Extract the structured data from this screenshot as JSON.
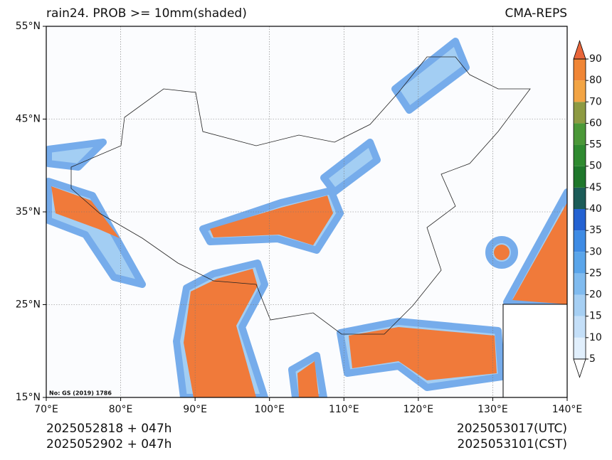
{
  "header": {
    "title": "rain24. PROB >= 10mm(shaded)",
    "source": "CMA-REPS"
  },
  "map": {
    "xlim": [
      70,
      140
    ],
    "ylim": [
      15,
      55
    ],
    "xticks": [
      {
        "value": 70,
        "label": "70°E"
      },
      {
        "value": 80,
        "label": "80°E"
      },
      {
        "value": 90,
        "label": "90°E"
      },
      {
        "value": 100,
        "label": "100°E"
      },
      {
        "value": 110,
        "label": "110°E"
      },
      {
        "value": 120,
        "label": "120°E"
      },
      {
        "value": 130,
        "label": "130°E"
      },
      {
        "value": 140,
        "label": "140°E"
      }
    ],
    "yticks": [
      {
        "value": 15,
        "label": "15°N"
      },
      {
        "value": 25,
        "label": "25°N"
      },
      {
        "value": 35,
        "label": "35°N"
      },
      {
        "value": 45,
        "label": "45°N"
      },
      {
        "value": 55,
        "label": "55°N"
      }
    ],
    "grid": true,
    "note": "No: GS (2019) 1786"
  },
  "colorbar": {
    "levels": [
      5,
      10,
      15,
      20,
      25,
      30,
      35,
      40,
      45,
      50,
      55,
      60,
      70,
      80,
      90
    ],
    "colors": [
      "#e1effc",
      "#c4dff8",
      "#a6cff3",
      "#80bbef",
      "#5aa5ea",
      "#3e8be4",
      "#2462d2",
      "#1c5c58",
      "#1f772b",
      "#2f8a30",
      "#4b9838",
      "#8d9a42",
      "#f2a444",
      "#f08636"
    ],
    "under_color": "#ffffff",
    "over_color": "#e9663a"
  },
  "footer": {
    "init_utc": "2025052818  +  047h",
    "init_cst": "2025052902  +  047h",
    "valid_utc": "2025053017(UTC)",
    "valid_cst": "2025053101(CST)"
  }
}
